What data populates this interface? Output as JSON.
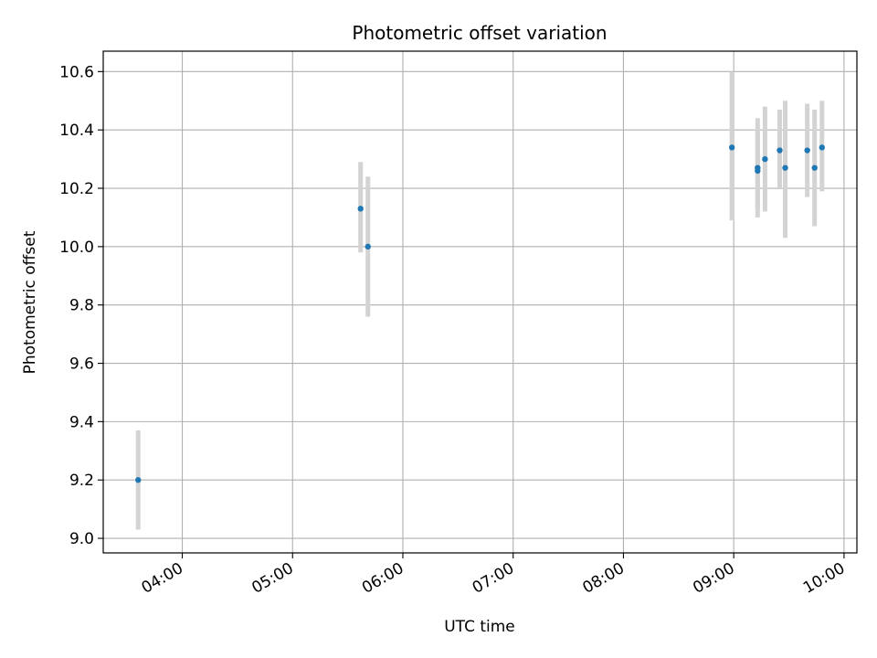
{
  "chart_data": {
    "type": "scatter",
    "title": "Photometric offset variation",
    "xlabel": "UTC time",
    "ylabel": "Photometric offset",
    "x_ticks": [
      "04:00",
      "05:00",
      "06:00",
      "07:00",
      "08:00",
      "09:00",
      "10:00"
    ],
    "y_ticks": [
      "9.0",
      "9.2",
      "9.4",
      "9.6",
      "9.8",
      "10.0",
      "10.2",
      "10.4",
      "10.6"
    ],
    "xlim": [
      "03:17",
      "10:07"
    ],
    "ylim": [
      8.95,
      10.67
    ],
    "grid": true,
    "x_tick_rotation": "30 degrees",
    "marker_color": "#1f77b4",
    "errorbar_color": "#d3d3d3",
    "points": [
      {
        "x": "03:36",
        "y": 9.2,
        "err_low": 9.03,
        "err_high": 9.37
      },
      {
        "x": "05:37",
        "y": 10.13,
        "err_low": 9.98,
        "err_high": 10.29
      },
      {
        "x": "05:41",
        "y": 10.0,
        "err_low": 9.76,
        "err_high": 10.24
      },
      {
        "x": "08:59",
        "y": 10.34,
        "err_low": 10.09,
        "err_high": 10.6
      },
      {
        "x": "09:13",
        "y": 10.27,
        "err_low": 10.1,
        "err_high": 10.44
      },
      {
        "x": "09:13",
        "y": 10.26,
        "err_low": 10.13,
        "err_high": 10.4
      },
      {
        "x": "09:17",
        "y": 10.3,
        "err_low": 10.12,
        "err_high": 10.48
      },
      {
        "x": "09:25",
        "y": 10.33,
        "err_low": 10.2,
        "err_high": 10.47
      },
      {
        "x": "09:28",
        "y": 10.27,
        "err_low": 10.03,
        "err_high": 10.5
      },
      {
        "x": "09:40",
        "y": 10.33,
        "err_low": 10.17,
        "err_high": 10.49
      },
      {
        "x": "09:44",
        "y": 10.27,
        "err_low": 10.07,
        "err_high": 10.47
      },
      {
        "x": "09:48",
        "y": 10.34,
        "err_low": 10.19,
        "err_high": 10.5
      }
    ]
  }
}
